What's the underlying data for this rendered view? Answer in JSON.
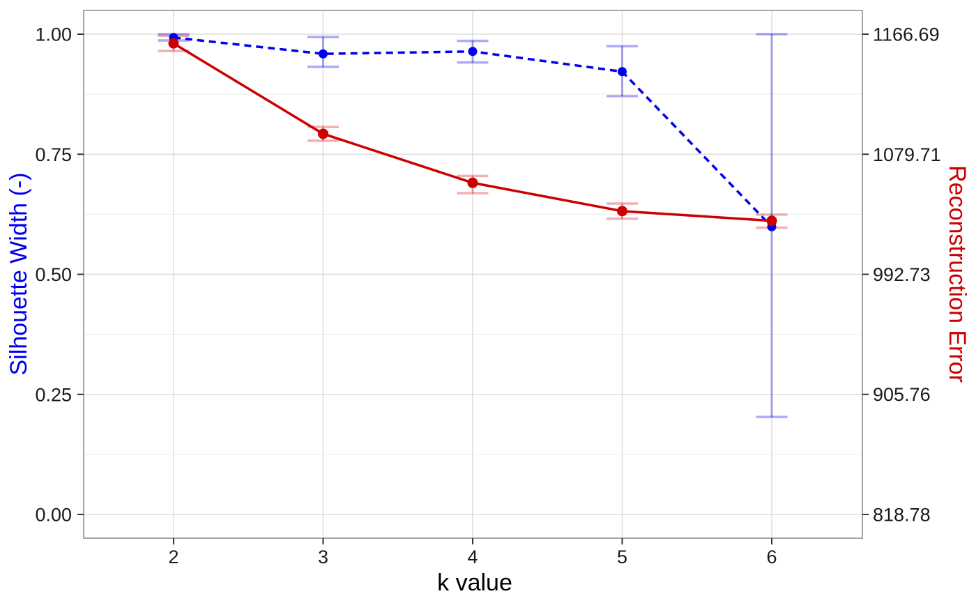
{
  "chart_data": {
    "type": "line",
    "title": "",
    "xlabel": "k value",
    "x": [
      2,
      3,
      4,
      5,
      6
    ],
    "x_tick_labels": [
      "2",
      "3",
      "4",
      "5",
      "6"
    ],
    "left_axis": {
      "title": "Silhouette Width (-)",
      "color": "#0000EE",
      "ticks": [
        0.0,
        0.25,
        0.5,
        0.75,
        1.0
      ],
      "tick_labels": [
        "0.00",
        "0.25",
        "0.50",
        "0.75",
        "1.00"
      ],
      "range": [
        -0.049,
        1.052
      ]
    },
    "right_axis": {
      "title": "Reconstruction Error",
      "color": "#CC0000",
      "ticks": [
        818.78,
        905.76,
        992.73,
        1079.71,
        1166.69
      ],
      "tick_labels": [
        "818.78",
        "905.76",
        "992.73",
        "1079.71",
        "1166.69"
      ],
      "range": [
        801.6,
        1185.0
      ]
    },
    "grid": {
      "major": true,
      "minor_horizontal": true,
      "minor_vertical": false
    },
    "legend": "none",
    "colors": {
      "major_grid": "#DEDEDE",
      "minor_grid": "#EFEFEF",
      "panel_border": "#A6A6A6",
      "tick_mark": "#333333",
      "tick_label": "#1A1A1A"
    },
    "series": [
      {
        "name": "Silhouette Width",
        "axis": "left",
        "style": "dashed",
        "color": "#0000EE",
        "error_color": "rgba(0,0,238,0.33)",
        "values": [
          0.993,
          0.959,
          0.964,
          0.922,
          0.599
        ],
        "error_low": [
          0.987,
          0.932,
          0.941,
          0.871,
          0.203
        ],
        "error_high": [
          1.0,
          0.994,
          0.986,
          0.975,
          1.0
        ]
      },
      {
        "name": "Reconstruction Error",
        "axis": "right",
        "style": "solid",
        "color": "#CC0000",
        "error_color": "rgba(204,0,0,0.30)",
        "values": [
          1160.0,
          1094.5,
          1059.0,
          1038.5,
          1031.5
        ],
        "error_low": [
          1154.5,
          1089.5,
          1051.5,
          1033.0,
          1026.5
        ],
        "error_high": [
          1165.5,
          1099.5,
          1064.0,
          1044.0,
          1036.0
        ]
      }
    ]
  }
}
